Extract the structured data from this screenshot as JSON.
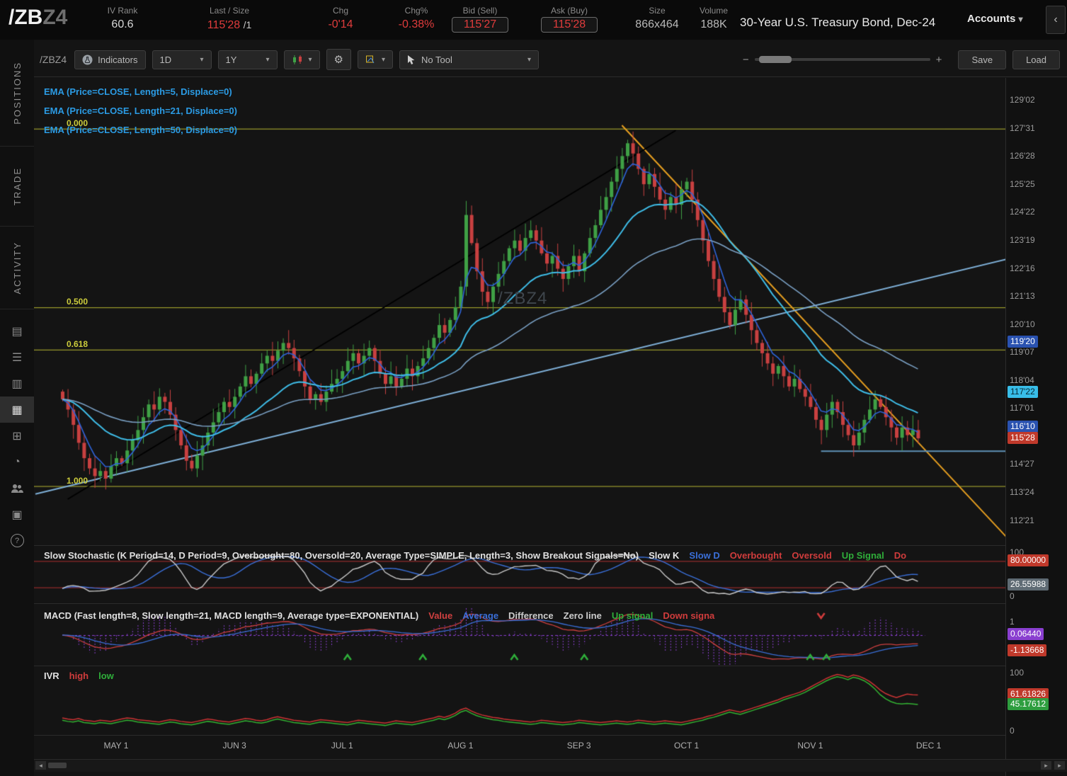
{
  "icons": {
    "chevron_down": "▾",
    "minus": "−",
    "plus": "+",
    "collapse": "‹",
    "scroll_left": "◂",
    "scroll_right": "▸",
    "gear": "⚙",
    "help": "?",
    "doc": "▤",
    "list": "☰",
    "ladder": "▥",
    "grid_active": "▦",
    "apps": "⊞",
    "clock": "◔",
    "archive": "▣"
  },
  "header": {
    "symbol": "/ZB",
    "symbol_suffix": "Z4",
    "fields": [
      {
        "label": "IV Rank",
        "value": "60.6"
      },
      {
        "label": "Last / Size",
        "value": "115'28",
        "suffix": "/1"
      },
      {
        "label": "Chg",
        "value": "-0'14"
      },
      {
        "label": "Chg%",
        "value": "-0.38%"
      },
      {
        "label": "Bid (Sell)",
        "value": "115'27"
      },
      {
        "label": "Ask (Buy)",
        "value": "115'28"
      },
      {
        "label": "Size",
        "value": "866x464"
      },
      {
        "label": "Volume",
        "value": "188K"
      }
    ],
    "title": "30-Year U.S. Treasury Bond, Dec-24",
    "accounts_label": "Accounts"
  },
  "sidebar": {
    "tabs": [
      "POSITIONS",
      "TRADE",
      "ACTIVITY"
    ]
  },
  "toolbar": {
    "symbol_label": "/ZBZ4",
    "indicators_label": "Indicators",
    "timeframe_label": "1D",
    "range_label": "1Y",
    "cursor_label": "No Tool",
    "save_label": "Save",
    "load_label": "Load"
  },
  "chart_data": {
    "type": "candlestick",
    "symbol": "/ZBZ4",
    "watermark": "/ZBZ4",
    "timeframe": "1D",
    "range": "1Y",
    "title": "30-Year U.S. Treasury Bond, Dec-24",
    "price_scale": {
      "min": 112.2,
      "max": 129.4
    },
    "closes": [
      117.4,
      117.0,
      116.4,
      115.7,
      115.1,
      114.7,
      114.4,
      114.6,
      114.3,
      114.8,
      115.1,
      114.9,
      115.4,
      115.8,
      116.2,
      116.7,
      117.2,
      117.0,
      117.5,
      117.3,
      116.8,
      116.2,
      115.6,
      115.0,
      114.7,
      115.2,
      115.6,
      116.1,
      116.5,
      116.9,
      117.3,
      117.1,
      117.5,
      117.9,
      118.3,
      118.0,
      118.4,
      118.8,
      119.1,
      118.9,
      119.3,
      119.6,
      119.4,
      119.0,
      118.5,
      117.9,
      117.4,
      117.6,
      117.3,
      117.7,
      118.0,
      118.2,
      118.5,
      118.9,
      119.2,
      118.8,
      119.1,
      119.4,
      118.9,
      118.4,
      118.0,
      118.3,
      117.9,
      118.2,
      118.6,
      118.3,
      118.7,
      119.0,
      119.4,
      119.8,
      120.3,
      120.0,
      120.5,
      121.0,
      121.8,
      124.6,
      123.5,
      122.4,
      121.6,
      121.2,
      121.8,
      122.3,
      122.8,
      123.3,
      123.6,
      123.2,
      123.7,
      124.0,
      123.6,
      123.1,
      122.7,
      123.0,
      122.5,
      122.1,
      122.6,
      123.0,
      122.4,
      123.1,
      123.7,
      124.2,
      124.8,
      125.3,
      125.9,
      126.4,
      126.9,
      127.4,
      127.0,
      126.4,
      125.8,
      126.2,
      125.7,
      125.2,
      124.8,
      125.3,
      125.0,
      125.6,
      125.9,
      125.2,
      124.4,
      123.6,
      122.8,
      122.1,
      121.4,
      120.8,
      120.3,
      120.9,
      121.3,
      120.7,
      120.1,
      119.6,
      119.2,
      118.8,
      118.4,
      118.7,
      118.3,
      117.9,
      118.2,
      117.8,
      117.5,
      117.1,
      116.6,
      116.2,
      116.8,
      117.3,
      116.9,
      116.4,
      116.0,
      115.6,
      116.1,
      116.6,
      117.0,
      117.4,
      117.1,
      116.7,
      116.3,
      115.9,
      116.3,
      116.0,
      116.2,
      115.875
    ],
    "last_price_label": "115'28",
    "emas": [
      {
        "length": 5,
        "color": "#2e63d8",
        "label": "EMA (Price=CLOSE, Length=5, Displace=0)"
      },
      {
        "length": 21,
        "color": "#3fbde8",
        "label": "EMA (Price=CLOSE, Length=21, Displace=0)"
      },
      {
        "length": 50,
        "color": "#7aa0c4",
        "label": "EMA (Price=CLOSE, Length=50, Displace=0)"
      }
    ],
    "colors": {
      "up": "#3fa045",
      "down": "#c84040",
      "fib": "#b8b832",
      "watermark": "#3f464d"
    },
    "fib_levels": [
      {
        "label": "0.000",
        "price": 127.97
      },
      {
        "label": "0.500",
        "price": 120.99
      },
      {
        "label": "0.618",
        "price": 119.34
      },
      {
        "label": "1.000",
        "price": 114.01
      }
    ],
    "trendlines": [
      {
        "name": "downtrend",
        "color": "#e8a020",
        "width": 2,
        "i1": 104,
        "p1": 128.1,
        "i2": 176,
        "p2": 111.9
      },
      {
        "name": "uptrend",
        "color": "#7fb0d8",
        "width": 2,
        "i1": -5,
        "p1": 113.7,
        "i2": 176,
        "p2": 122.9
      },
      {
        "name": "uptrend-steep",
        "color": "#000000",
        "width": 2,
        "i1": 1,
        "p1": 113.5,
        "i2": 114,
        "p2": 127.9
      },
      {
        "name": "support",
        "color": "#5f93b8",
        "width": 2,
        "i1": 141,
        "p1": 115.37,
        "i2": 176,
        "p2": 115.37
      }
    ],
    "price_axis": [
      {
        "label": "129'02",
        "price": 129.0625
      },
      {
        "label": "127'31",
        "price": 127.969
      },
      {
        "label": "126'28",
        "price": 126.875
      },
      {
        "label": "125'25",
        "price": 125.781
      },
      {
        "label": "124'22",
        "price": 124.688
      },
      {
        "label": "123'19",
        "price": 123.594
      },
      {
        "label": "122'16",
        "price": 122.5
      },
      {
        "label": "121'13",
        "price": 121.406
      },
      {
        "label": "120'10",
        "price": 120.3125
      },
      {
        "label": "119'07",
        "price": 119.219
      },
      {
        "label": "118'04",
        "price": 118.125
      },
      {
        "label": "117'01",
        "price": 117.031
      },
      {
        "label": "114'27",
        "price": 114.844
      },
      {
        "label": "113'24",
        "price": 113.75
      },
      {
        "label": "112'21",
        "price": 112.656
      }
    ],
    "price_badges": [
      {
        "label": "119'20",
        "price": 119.625,
        "bg": "#2a52b0",
        "fg": "#ffffff"
      },
      {
        "label": "117'22",
        "price": 117.6875,
        "bg": "#38bde8",
        "fg": "#062833"
      },
      {
        "label": "116'10",
        "price": 116.3125,
        "bg": "#2a52b0",
        "fg": "#ffffff"
      },
      {
        "label": "115'28",
        "price": 115.875,
        "bg": "#c0392b",
        "fg": "#ffffff"
      }
    ],
    "month_ticks": [
      {
        "label": "MAY 1",
        "i": 10
      },
      {
        "label": "JUN 3",
        "i": 32
      },
      {
        "label": "JUL 1",
        "i": 52
      },
      {
        "label": "AUG 1",
        "i": 74
      },
      {
        "label": "SEP 3",
        "i": 96
      },
      {
        "label": "OCT 1",
        "i": 116
      },
      {
        "label": "NOV 1",
        "i": 139
      },
      {
        "label": "DEC 1",
        "i": 161
      }
    ],
    "stochastic": {
      "title": "Slow Stochastic (K Period=14, D Period=9, Overbought=80, Oversold=20, Average Type=SIMPLE, Length=3, Show Breakout Signals=No)",
      "legend": [
        {
          "label": "Slow K",
          "color": "#e8e8e8"
        },
        {
          "label": "Slow D",
          "color": "#3a6fd8"
        },
        {
          "label": "Overbought",
          "color": "#d03c3c"
        },
        {
          "label": "Oversold",
          "color": "#d03c3c"
        },
        {
          "label": "Up Signal",
          "color": "#2fae3a"
        },
        {
          "label": "Do",
          "color": "#d03c3c"
        }
      ],
      "k_period": 14,
      "d_period": 9,
      "overbought": 80,
      "oversold": 20,
      "k_color": "#c8c8c8",
      "d_color": "#3a6fd8",
      "ref_color": "#b03030",
      "axis_top": "100",
      "axis_bottom": "0",
      "badges": [
        {
          "label": "80.00000",
          "value": 80,
          "bg": "#c0392b",
          "fg": "#ffffff"
        },
        {
          "label": "26.55988",
          "value": 26.56,
          "bg": "#5f6b74",
          "fg": "#ffffff"
        }
      ]
    },
    "macd": {
      "title": "MACD (Fast length=8, Slow length=21, MACD length=9, Average type=EXPONENTIAL)",
      "legend": [
        {
          "label": "Value",
          "color": "#d04040"
        },
        {
          "label": "Average",
          "color": "#3a6fd8"
        },
        {
          "label": "Difference",
          "color": "#cccccc"
        },
        {
          "label": "Zero line",
          "color": "#cccccc"
        },
        {
          "label": "Up signal",
          "color": "#2fae3a"
        },
        {
          "label": "Down signa",
          "color": "#d03c3c"
        }
      ],
      "fast_length": 8,
      "slow_length": 21,
      "macd_length": 9,
      "value_color": "#d04040",
      "average_color": "#3a6fd8",
      "hist_color": "#8a3fd0",
      "zero_color": "#8a3fd0",
      "up_color": "#2fae3a",
      "down_color": "#d03c3c",
      "axis_top": "1",
      "badges": [
        {
          "label": "0.06440",
          "value": 0.0644,
          "bg": "#8a3fd0",
          "fg": "#ffffff"
        },
        {
          "label": "-1.13668",
          "value": -1.13668,
          "bg": "#c0392b",
          "fg": "#ffffff"
        }
      ],
      "up_signals": [
        53,
        67,
        84,
        97,
        139,
        142
      ],
      "down_signals": [
        141
      ]
    },
    "ivr": {
      "title": "IVR",
      "legend": [
        {
          "label": "high",
          "color": "#d03c3c"
        },
        {
          "label": "low",
          "color": "#2fae3a"
        }
      ],
      "high_color": "#cc3434",
      "low_color": "#33b333",
      "high": [
        22,
        20,
        19,
        21,
        18,
        17,
        16,
        18,
        17,
        16,
        18,
        20,
        22,
        21,
        19,
        18,
        17,
        16,
        15,
        17,
        19,
        18,
        16,
        15,
        14,
        16,
        18,
        20,
        19,
        17,
        16,
        15,
        17,
        19,
        21,
        20,
        18,
        17,
        19,
        22,
        24,
        22,
        20,
        18,
        17,
        16,
        15,
        17,
        19,
        18,
        17,
        16,
        15,
        14,
        16,
        18,
        17,
        16,
        15,
        14,
        13,
        15,
        17,
        16,
        15,
        14,
        16,
        18,
        20,
        22,
        25,
        23,
        26,
        30,
        36,
        39,
        34,
        30,
        27,
        25,
        23,
        22,
        20,
        19,
        18,
        17,
        16,
        15,
        16,
        18,
        17,
        16,
        15,
        14,
        15,
        16,
        18,
        17,
        16,
        15,
        14,
        15,
        16,
        17,
        16,
        15,
        16,
        18,
        17,
        16,
        15,
        16,
        17,
        16,
        15,
        14,
        16,
        18,
        20,
        22,
        25,
        27,
        30,
        33,
        36,
        34,
        32,
        35,
        38,
        41,
        44,
        47,
        50,
        53,
        57,
        60,
        63,
        66,
        70,
        75,
        80,
        85,
        90,
        94,
        97,
        95,
        92,
        96,
        94,
        90,
        85,
        78,
        70,
        64,
        60,
        57,
        60,
        63,
        62,
        61.6
      ],
      "low": [
        18,
        16,
        15,
        17,
        14,
        13,
        12,
        14,
        13,
        12,
        14,
        16,
        18,
        17,
        15,
        14,
        13,
        12,
        11,
        13,
        15,
        14,
        12,
        11,
        10,
        12,
        14,
        16,
        15,
        13,
        12,
        11,
        13,
        15,
        17,
        16,
        14,
        13,
        15,
        18,
        20,
        18,
        16,
        14,
        13,
        12,
        11,
        13,
        15,
        14,
        13,
        12,
        11,
        10,
        12,
        14,
        13,
        12,
        11,
        10,
        9,
        11,
        13,
        12,
        11,
        10,
        12,
        14,
        16,
        18,
        21,
        19,
        22,
        26,
        32,
        35,
        30,
        26,
        23,
        21,
        19,
        18,
        16,
        15,
        14,
        13,
        12,
        11,
        12,
        14,
        13,
        12,
        11,
        10,
        11,
        12,
        14,
        13,
        12,
        11,
        10,
        11,
        12,
        13,
        12,
        11,
        12,
        14,
        13,
        12,
        11,
        12,
        13,
        12,
        11,
        10,
        12,
        14,
        16,
        18,
        21,
        23,
        26,
        29,
        32,
        30,
        28,
        31,
        34,
        37,
        40,
        43,
        46,
        49,
        53,
        56,
        59,
        62,
        66,
        71,
        76,
        81,
        86,
        90,
        93,
        91,
        88,
        92,
        90,
        86,
        80,
        72,
        62,
        55,
        50,
        47,
        46,
        47,
        46,
        45.2
      ],
      "axis_top": "100",
      "axis_bottom": "0",
      "badges": [
        {
          "label": "61.61826",
          "value": 61.6,
          "bg": "#c0392b",
          "fg": "#ffffff"
        },
        {
          "label": "45.17612",
          "value": 45.2,
          "bg": "#2e9e3f",
          "fg": "#ffffff"
        }
      ]
    }
  }
}
